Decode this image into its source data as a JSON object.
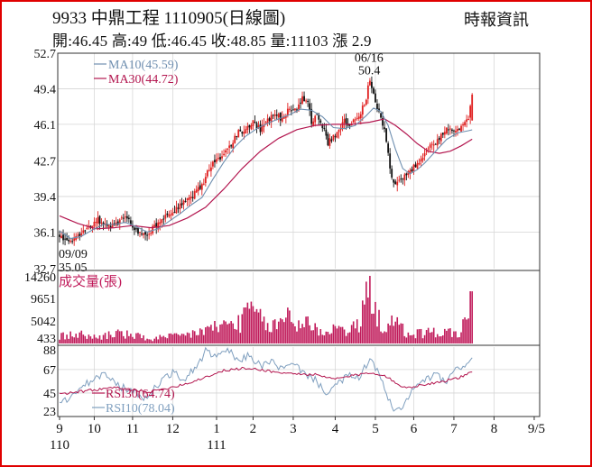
{
  "header": {
    "title": "9933  中鼎工程 1110905(日線圖)",
    "source": "時報資訊",
    "ohlc": "開:46.45 高:49 低:46.45 收:48.85 量:11103 漲 2.9"
  },
  "colors": {
    "up": "#e02020",
    "down": "#111111",
    "ma10": "#6f8fb0",
    "ma30": "#b3164f",
    "volume": "#c01a5a",
    "rsi30": "#b3164f",
    "rsi10": "#7f9fbf",
    "frame": "#333333"
  },
  "chart_data": [
    {
      "type": "candlestick",
      "panel": "price",
      "y_ticks": [
        "52.7",
        "49.4",
        "46.1",
        "42.7",
        "39.4",
        "36.1",
        "32.7"
      ],
      "ylim": [
        32.7,
        52.7
      ],
      "legend": [
        {
          "name": "MA10(45.59)",
          "color": "#6f8fb0"
        },
        {
          "name": "MA30(44.72)",
          "color": "#b3164f"
        }
      ],
      "annotations": [
        {
          "date": "06/16",
          "value": "50.4",
          "note_date": "06/16",
          "note_value": "50.4"
        },
        {
          "date": "09/09",
          "value": "35.05",
          "note_date": "09/09",
          "note_value": "35.05"
        }
      ],
      "last_bar": {
        "open": 46.45,
        "high": 49,
        "low": 46.45,
        "close": 48.85
      },
      "ma10_last": 45.59,
      "ma30_last": 44.72,
      "high_point": 50.4,
      "low_point": 35.05,
      "price_path": [
        [
          0,
          35.8
        ],
        [
          3,
          35.3
        ],
        [
          6,
          35.05
        ],
        [
          9,
          35.6
        ],
        [
          12,
          35.9
        ],
        [
          15,
          36.3
        ],
        [
          18,
          36.8
        ],
        [
          21,
          37.2
        ],
        [
          24,
          37.0
        ],
        [
          27,
          36.6
        ],
        [
          30,
          36.8
        ],
        [
          33,
          37.1
        ],
        [
          36,
          37.4
        ],
        [
          39,
          36.9
        ],
        [
          42,
          36.3
        ],
        [
          45,
          36.0
        ],
        [
          48,
          35.9
        ],
        [
          51,
          36.4
        ],
        [
          54,
          36.9
        ],
        [
          57,
          37.3
        ],
        [
          60,
          37.9
        ],
        [
          63,
          38.2
        ],
        [
          66,
          38.6
        ],
        [
          69,
          38.9
        ],
        [
          72,
          39.3
        ],
        [
          75,
          39.9
        ],
        [
          78,
          40.3
        ],
        [
          80,
          41.2
        ],
        [
          83,
          42.3
        ],
        [
          86,
          42.6
        ],
        [
          90,
          43.6
        ],
        [
          94,
          44.2
        ],
        [
          98,
          45.4
        ],
        [
          102,
          45.6
        ],
        [
          106,
          46.3
        ],
        [
          110,
          45.6
        ],
        [
          114,
          46.5
        ],
        [
          118,
          47.0
        ],
        [
          122,
          46.6
        ],
        [
          126,
          47.6
        ],
        [
          130,
          47.2
        ],
        [
          133,
          48.6
        ],
        [
          136,
          48.1
        ],
        [
          138,
          46.4
        ],
        [
          141,
          46.9
        ],
        [
          144,
          46.0
        ],
        [
          147,
          44.4
        ],
        [
          150,
          45.0
        ],
        [
          153,
          45.6
        ],
        [
          156,
          46.4
        ],
        [
          159,
          45.9
        ],
        [
          162,
          46.6
        ],
        [
          165,
          47.2
        ],
        [
          168,
          48.6
        ],
        [
          170,
          50.4
        ],
        [
          172,
          48.8
        ],
        [
          175,
          47.1
        ],
        [
          178,
          45.8
        ],
        [
          180,
          43.4
        ],
        [
          182,
          41.1
        ],
        [
          184,
          40.3
        ],
        [
          187,
          41.0
        ],
        [
          190,
          41.6
        ],
        [
          193,
          41.9
        ],
        [
          196,
          42.6
        ],
        [
          199,
          43.1
        ],
        [
          202,
          43.8
        ],
        [
          205,
          44.3
        ],
        [
          208,
          44.9
        ],
        [
          211,
          45.4
        ],
        [
          214,
          45.9
        ],
        [
          217,
          45.4
        ],
        [
          220,
          46.0
        ],
        [
          224,
          46.6
        ],
        [
          226,
          48.85
        ]
      ],
      "ma10_path": [
        [
          0,
          36.2
        ],
        [
          6,
          35.5
        ],
        [
          12,
          35.7
        ],
        [
          18,
          36.3
        ],
        [
          24,
          36.8
        ],
        [
          30,
          36.8
        ],
        [
          36,
          37.0
        ],
        [
          42,
          36.6
        ],
        [
          48,
          36.1
        ],
        [
          54,
          36.4
        ],
        [
          60,
          37.1
        ],
        [
          66,
          37.8
        ],
        [
          72,
          38.6
        ],
        [
          78,
          39.3
        ],
        [
          84,
          41.0
        ],
        [
          90,
          42.6
        ],
        [
          96,
          44.0
        ],
        [
          102,
          45.0
        ],
        [
          108,
          45.7
        ],
        [
          114,
          46.2
        ],
        [
          120,
          46.6
        ],
        [
          126,
          47.0
        ],
        [
          132,
          47.5
        ],
        [
          138,
          47.4
        ],
        [
          144,
          46.8
        ],
        [
          150,
          45.8
        ],
        [
          156,
          45.7
        ],
        [
          162,
          46.0
        ],
        [
          168,
          46.9
        ],
        [
          172,
          47.6
        ],
        [
          176,
          47.3
        ],
        [
          180,
          46.0
        ],
        [
          184,
          43.8
        ],
        [
          188,
          42.0
        ],
        [
          192,
          41.5
        ],
        [
          196,
          41.9
        ],
        [
          200,
          42.5
        ],
        [
          206,
          43.6
        ],
        [
          212,
          44.7
        ],
        [
          218,
          45.3
        ],
        [
          224,
          45.5
        ],
        [
          226,
          45.59
        ]
      ],
      "ma30_path": [
        [
          0,
          37.6
        ],
        [
          10,
          36.9
        ],
        [
          20,
          36.4
        ],
        [
          30,
          36.5
        ],
        [
          40,
          36.7
        ],
        [
          50,
          36.5
        ],
        [
          60,
          36.7
        ],
        [
          70,
          37.4
        ],
        [
          80,
          38.4
        ],
        [
          90,
          40.1
        ],
        [
          100,
          42.0
        ],
        [
          110,
          43.6
        ],
        [
          120,
          44.8
        ],
        [
          130,
          45.6
        ],
        [
          140,
          46.0
        ],
        [
          150,
          46.1
        ],
        [
          160,
          46.1
        ],
        [
          170,
          46.3
        ],
        [
          178,
          46.6
        ],
        [
          184,
          46.0
        ],
        [
          190,
          45.2
        ],
        [
          196,
          44.3
        ],
        [
          202,
          43.6
        ],
        [
          208,
          43.4
        ],
        [
          214,
          43.6
        ],
        [
          220,
          44.1
        ],
        [
          226,
          44.72
        ]
      ]
    },
    {
      "type": "bar",
      "panel": "volume",
      "legend": [
        {
          "name": "成交量(張)",
          "color": "#c01a5a"
        }
      ],
      "y_ticks": [
        "14260",
        "9651",
        "5042",
        "433"
      ],
      "ylim": [
        433,
        14260
      ],
      "last_value": 11103,
      "peak_value": 14260,
      "peak_index": 170,
      "volume_profile": [
        [
          0,
          1800
        ],
        [
          10,
          2400
        ],
        [
          20,
          1600
        ],
        [
          30,
          2600
        ],
        [
          40,
          2000
        ],
        [
          50,
          1400
        ],
        [
          60,
          1700
        ],
        [
          70,
          2200
        ],
        [
          80,
          3200
        ],
        [
          90,
          4200
        ],
        [
          100,
          4800
        ],
        [
          105,
          8000
        ],
        [
          110,
          5200
        ],
        [
          115,
          3800
        ],
        [
          120,
          4200
        ],
        [
          125,
          6800
        ],
        [
          130,
          4000
        ],
        [
          135,
          5400
        ],
        [
          140,
          3400
        ],
        [
          145,
          2800
        ],
        [
          150,
          3600
        ],
        [
          160,
          3200
        ],
        [
          165,
          4600
        ],
        [
          170,
          14260
        ],
        [
          173,
          6200
        ],
        [
          178,
          3800
        ],
        [
          182,
          4400
        ],
        [
          186,
          4200
        ],
        [
          190,
          2400
        ],
        [
          200,
          2600
        ],
        [
          210,
          2800
        ],
        [
          220,
          2500
        ],
        [
          226,
          11103
        ]
      ]
    },
    {
      "type": "line",
      "panel": "rsi",
      "y_ticks": [
        "88",
        "67",
        "45",
        "23"
      ],
      "ylim": [
        23,
        88
      ],
      "legend": [
        {
          "name": "RSI30(64.74)",
          "color": "#b3164f"
        },
        {
          "name": "RSI10(78.04)",
          "color": "#7f9fbf"
        }
      ],
      "series": [
        {
          "name": "RSI30(64.74)",
          "points": [
            [
              0,
              44
            ],
            [
              10,
              46
            ],
            [
              20,
              48
            ],
            [
              30,
              50
            ],
            [
              40,
              48
            ],
            [
              50,
              46
            ],
            [
              60,
              50
            ],
            [
              70,
              54
            ],
            [
              80,
              60
            ],
            [
              90,
              66
            ],
            [
              100,
              68
            ],
            [
              110,
              67
            ],
            [
              120,
              64
            ],
            [
              130,
              63
            ],
            [
              140,
              62
            ],
            [
              150,
              58
            ],
            [
              160,
              61
            ],
            [
              170,
              64
            ],
            [
              178,
              62
            ],
            [
              184,
              54
            ],
            [
              190,
              50
            ],
            [
              200,
              53
            ],
            [
              210,
              56
            ],
            [
              220,
              60
            ],
            [
              226,
              64.74
            ]
          ]
        },
        {
          "name": "RSI10(78.04)",
          "points": [
            [
              0,
              34
            ],
            [
              8,
              44
            ],
            [
              16,
              55
            ],
            [
              24,
              63
            ],
            [
              32,
              52
            ],
            [
              40,
              46
            ],
            [
              48,
              40
            ],
            [
              56,
              58
            ],
            [
              62,
              64
            ],
            [
              68,
              57
            ],
            [
              76,
              72
            ],
            [
              80,
              84
            ],
            [
              86,
              78
            ],
            [
              92,
              86
            ],
            [
              98,
              74
            ],
            [
              104,
              81
            ],
            [
              110,
              70
            ],
            [
              116,
              75
            ],
            [
              122,
              67
            ],
            [
              128,
              72
            ],
            [
              134,
              64
            ],
            [
              140,
              57
            ],
            [
              146,
              46
            ],
            [
              152,
              52
            ],
            [
              158,
              62
            ],
            [
              164,
              58
            ],
            [
              170,
              78
            ],
            [
              174,
              66
            ],
            [
              180,
              40
            ],
            [
              184,
              26
            ],
            [
              188,
              33
            ],
            [
              194,
              49
            ],
            [
              200,
              57
            ],
            [
              206,
              62
            ],
            [
              212,
              55
            ],
            [
              218,
              68
            ],
            [
              222,
              72
            ],
            [
              226,
              78.04
            ]
          ]
        }
      ]
    }
  ],
  "x_axis": {
    "ticks": [
      "9",
      "10",
      "11",
      "12",
      "1",
      "2",
      "3",
      "4",
      "5",
      "6",
      "7",
      "8",
      "9/5"
    ],
    "tick_index": [
      0,
      19,
      40,
      62,
      86,
      106,
      128,
      151,
      173,
      194,
      216,
      238,
      260
    ],
    "year_labels": [
      {
        "label": "110",
        "index": 0
      },
      {
        "label": "111",
        "index": 86
      }
    ]
  }
}
